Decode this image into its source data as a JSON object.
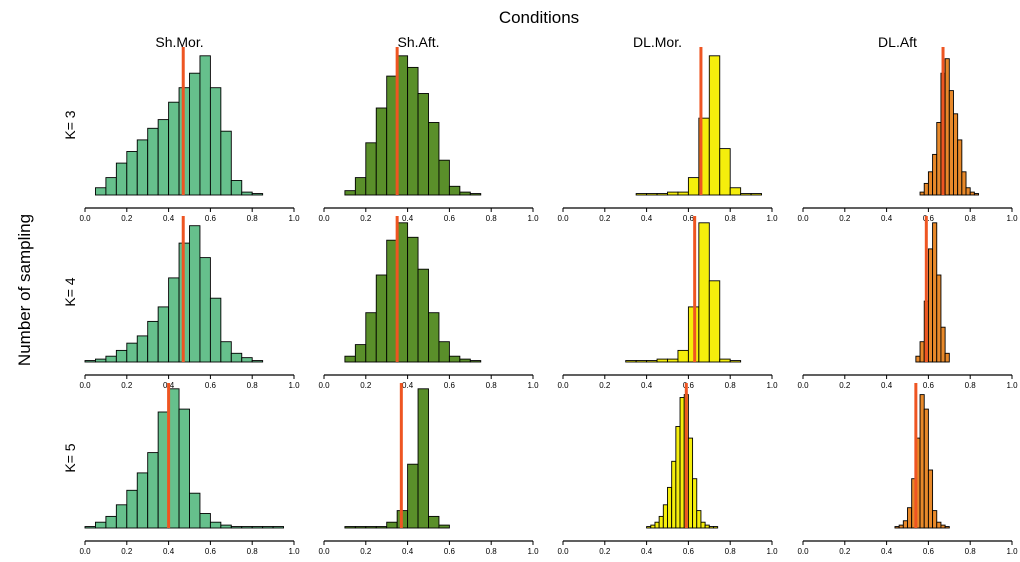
{
  "title": "Conditions",
  "ylabel": "Number of sampling",
  "chart_data": {
    "type": "bar",
    "layout": "small-multiples 3 rows x 4 columns",
    "title": "Conditions",
    "ylabel": "Number of sampling",
    "columns": [
      "Sh.Mor.",
      "Sh.Aft.",
      "DL.Mor.",
      "DL.Aft"
    ],
    "rows": [
      "K= 3",
      "K= 4",
      "K= 5"
    ],
    "xlim": [
      0,
      1
    ],
    "xticks": [
      "0.0",
      "0.2",
      "0.4",
      "0.6",
      "0.8",
      "1.0"
    ],
    "colors": {
      "Sh.Mor.": "#66c08c",
      "Sh.Aft.": "#5a8f2a",
      "DL.Mor.": "#f5ee0c",
      "DL.Aft": "#e8892a",
      "marker": "#ee5522"
    },
    "panels": [
      {
        "row": 0,
        "col": 0,
        "start": 0.05,
        "width": 0.05,
        "values": [
          0.05,
          0.12,
          0.22,
          0.3,
          0.38,
          0.46,
          0.52,
          0.64,
          0.74,
          0.84,
          0.96,
          0.74,
          0.44,
          0.1,
          0.02,
          0.01
        ],
        "marker": 0.47
      },
      {
        "row": 0,
        "col": 1,
        "start": 0.1,
        "width": 0.05,
        "values": [
          0.03,
          0.12,
          0.36,
          0.6,
          0.82,
          0.96,
          0.88,
          0.7,
          0.5,
          0.24,
          0.06,
          0.02,
          0.01
        ],
        "marker": 0.35
      },
      {
        "row": 0,
        "col": 2,
        "start": 0.35,
        "width": 0.05,
        "values": [
          0.01,
          0.01,
          0.01,
          0.02,
          0.02,
          0.12,
          0.53,
          0.96,
          0.32,
          0.05,
          0.01,
          0.01
        ],
        "marker": 0.66
      },
      {
        "row": 0,
        "col": 3,
        "start": 0.56,
        "width": 0.02,
        "values": [
          0.02,
          0.08,
          0.16,
          0.28,
          0.5,
          0.84,
          0.94,
          0.72,
          0.56,
          0.38,
          0.16,
          0.05,
          0.02,
          0.01
        ],
        "marker": 0.67
      },
      {
        "row": 1,
        "col": 0,
        "start": 0.0,
        "width": 0.05,
        "values": [
          0.01,
          0.02,
          0.04,
          0.08,
          0.13,
          0.18,
          0.28,
          0.38,
          0.58,
          0.82,
          0.94,
          0.72,
          0.44,
          0.14,
          0.06,
          0.03,
          0.01
        ],
        "marker": 0.47
      },
      {
        "row": 1,
        "col": 1,
        "start": 0.1,
        "width": 0.05,
        "values": [
          0.04,
          0.12,
          0.34,
          0.6,
          0.84,
          0.96,
          0.86,
          0.64,
          0.34,
          0.14,
          0.04,
          0.02,
          0.01
        ],
        "marker": 0.35
      },
      {
        "row": 1,
        "col": 2,
        "start": 0.3,
        "width": 0.05,
        "values": [
          0.01,
          0.01,
          0.01,
          0.02,
          0.02,
          0.08,
          0.38,
          0.96,
          0.56,
          0.02,
          0.01
        ],
        "marker": 0.63
      },
      {
        "row": 1,
        "col": 3,
        "start": 0.54,
        "width": 0.02,
        "values": [
          0.04,
          0.14,
          0.42,
          0.78,
          0.96,
          0.6,
          0.24,
          0.06
        ],
        "marker": 0.59
      },
      {
        "row": 2,
        "col": 0,
        "start": 0.0,
        "width": 0.05,
        "values": [
          0.01,
          0.04,
          0.08,
          0.16,
          0.26,
          0.38,
          0.52,
          0.8,
          0.96,
          0.82,
          0.24,
          0.1,
          0.04,
          0.02,
          0.01,
          0.01,
          0.01,
          0.01,
          0.01
        ],
        "marker": 0.4
      },
      {
        "row": 2,
        "col": 1,
        "start": 0.1,
        "width": 0.05,
        "values": [
          0.01,
          0.01,
          0.01,
          0.01,
          0.04,
          0.12,
          0.44,
          0.96,
          0.08,
          0.02
        ],
        "marker": 0.37
      },
      {
        "row": 2,
        "col": 2,
        "start": 0.4,
        "width": 0.02,
        "values": [
          0.01,
          0.02,
          0.04,
          0.08,
          0.16,
          0.28,
          0.46,
          0.7,
          0.9,
          0.92,
          0.62,
          0.34,
          0.12,
          0.04,
          0.02,
          0.01,
          0.01
        ],
        "marker": 0.59
      },
      {
        "row": 2,
        "col": 3,
        "start": 0.44,
        "width": 0.02,
        "values": [
          0.01,
          0.02,
          0.05,
          0.14,
          0.34,
          0.62,
          0.92,
          0.82,
          0.4,
          0.12,
          0.04,
          0.02,
          0.01
        ],
        "marker": 0.54
      }
    ]
  }
}
